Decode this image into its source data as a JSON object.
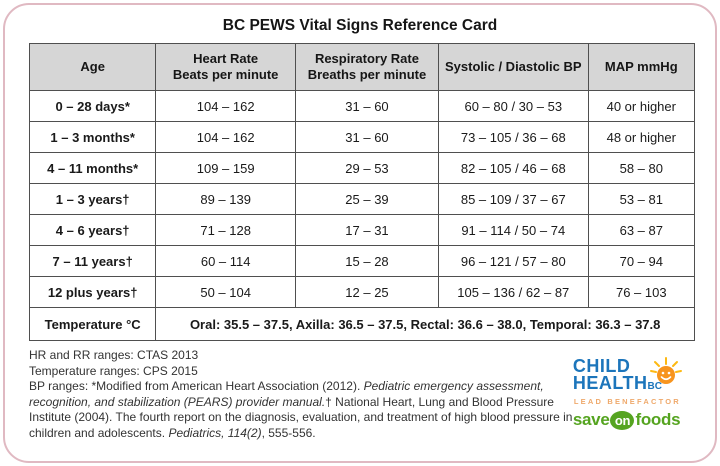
{
  "title": "BC PEWS Vital Signs Reference Card",
  "table": {
    "headers": {
      "age": "Age",
      "heart_rate": "Heart Rate\nBeats per minute",
      "respiratory_rate": "Respiratory Rate\nBreaths per minute",
      "bp": "Systolic / Diastolic BP",
      "map": "MAP mmHg"
    },
    "rows": [
      {
        "age": "0 – 28 days*",
        "hr": "104 – 162",
        "rr": "31 – 60",
        "bp": "60 – 80 / 30 – 53",
        "map": "40 or higher"
      },
      {
        "age": "1 – 3 months*",
        "hr": "104 – 162",
        "rr": "31 – 60",
        "bp": "73 – 105 / 36 – 68",
        "map": "48 or higher"
      },
      {
        "age": "4 – 11 months*",
        "hr": "109 – 159",
        "rr": "29 – 53",
        "bp": "82 – 105 / 46 – 68",
        "map": "58 – 80"
      },
      {
        "age": "1 – 3 years†",
        "hr": "89 – 139",
        "rr": "25 – 39",
        "bp": "85 – 109 / 37 – 67",
        "map": "53 – 81"
      },
      {
        "age": "4 – 6 years†",
        "hr": "71 – 128",
        "rr": "17 – 31",
        "bp": "91 – 114 / 50 – 74",
        "map": "63 – 87"
      },
      {
        "age": "7 – 11 years†",
        "hr": "60 – 114",
        "rr": "15 – 28",
        "bp": "96 – 121 / 57 – 80",
        "map": "70 – 94"
      },
      {
        "age": "12 plus years†",
        "hr": "50 – 104",
        "rr": "12 – 25",
        "bp": "105 – 136 / 62 – 87",
        "map": "76 – 103"
      }
    ],
    "temperature": {
      "label": "Temperature °C",
      "values": "Oral: 35.5 – 37.5, Axilla: 36.5 – 37.5, Rectal: 36.6 – 38.0, Temporal: 36.3 – 37.8"
    }
  },
  "footer": {
    "line1": "HR and RR ranges: CTAS 2013",
    "line2": "Temperature ranges: CPS 2015",
    "line3_segments": [
      {
        "text": "BP ranges: *Modified from American Heart Association (2012). ",
        "italic": false
      },
      {
        "text": "Pediatric emergency assessment, recognition, and stabilization (PEARS) provider manual.",
        "italic": true
      },
      {
        "text": "† National Heart, Lung and Blood Pressure Institute (2004). The fourth report on the diagnosis, evaluation, and treatment of high blood pressure in children and adolescents. ",
        "italic": false
      },
      {
        "text": "Pediatrics, 114(2)",
        "italic": true
      },
      {
        "text": ", 555-556.",
        "italic": false
      }
    ]
  },
  "logos": {
    "child": "CHILD",
    "health": "HEALTH",
    "bc": "BC",
    "sun_icon": "sun-icon",
    "lead_benefactor": "LEAD BENEFACTOR",
    "save": "save",
    "on": "on",
    "foods": "foods"
  },
  "colors": {
    "card_border": "#e0b9c2",
    "header_bg": "#d6d6d6",
    "table_border": "#4f4f4f",
    "brand_blue": "#1c75bb",
    "sun_orange": "#f7941e",
    "ray_yellow": "#fdb913",
    "benefactor_orange": "#efa96b",
    "saveon_green": "#55a420"
  }
}
